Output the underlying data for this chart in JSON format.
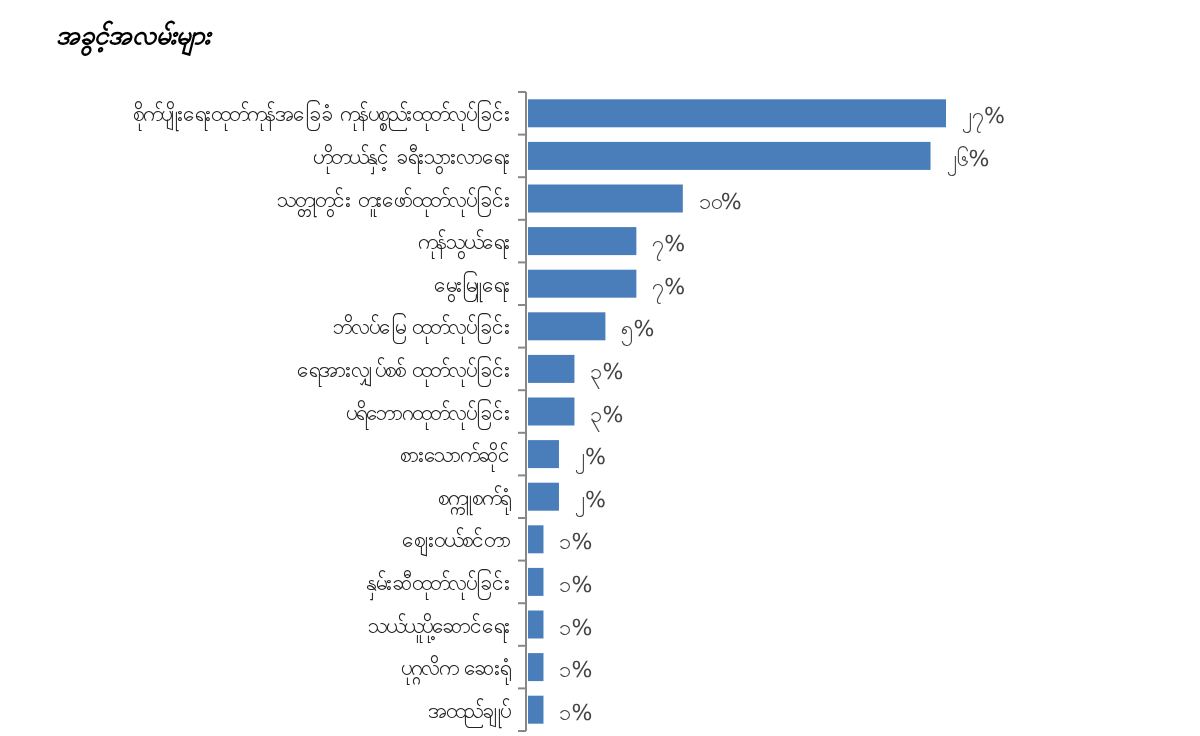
{
  "chart_data": {
    "type": "bar",
    "orientation": "horizontal",
    "title": "အခွင့်အလမ်းများ",
    "categories": [
      "စိုက်ပျိုးရေးထုတ်ကုန်အခြေခံ ကုန်ပစ္စည်းထုတ်လုပ်ခြင်း",
      "ဟိုတယ်နှင့် ခရီးသွားလာရေး",
      "သတ္တုတွင်း တူးဖော်ထုတ်လုပ်ခြင်း",
      "ကုန်သွယ်ရေး",
      "မွေးမြူရေး",
      "ဘိလပ်မြေ ထုတ်လုပ်ခြင်း",
      "ရေအားလျှပ်စစ် ထုတ်လုပ်ခြင်း",
      "ပရိဘောဂထုတ်လုပ်ခြင်း",
      "စားသောက်ဆိုင်",
      "စက္ကူစက်ရုံ",
      "ဈေးဝယ်စင်တာ",
      "နှမ်းဆီထုတ်လုပ်ခြင်း",
      "သယ်ယူပို့ဆောင်ရေး",
      "ပုဂ္ဂလိက ဆေးရုံ",
      "အထည်ချုပ်"
    ],
    "values": [
      27,
      26,
      10,
      7,
      7,
      5,
      3,
      3,
      2,
      2,
      1,
      1,
      1,
      1,
      1
    ],
    "value_labels": [
      "၂၇%",
      "၂၆%",
      "၁၀%",
      "၇%",
      "၇%",
      "၅%",
      "၃%",
      "၃%",
      "၂%",
      "၂%",
      "၁%",
      "၁%",
      "၁%",
      "၁%",
      "၁%"
    ],
    "color": "#4a7ebb"
  }
}
